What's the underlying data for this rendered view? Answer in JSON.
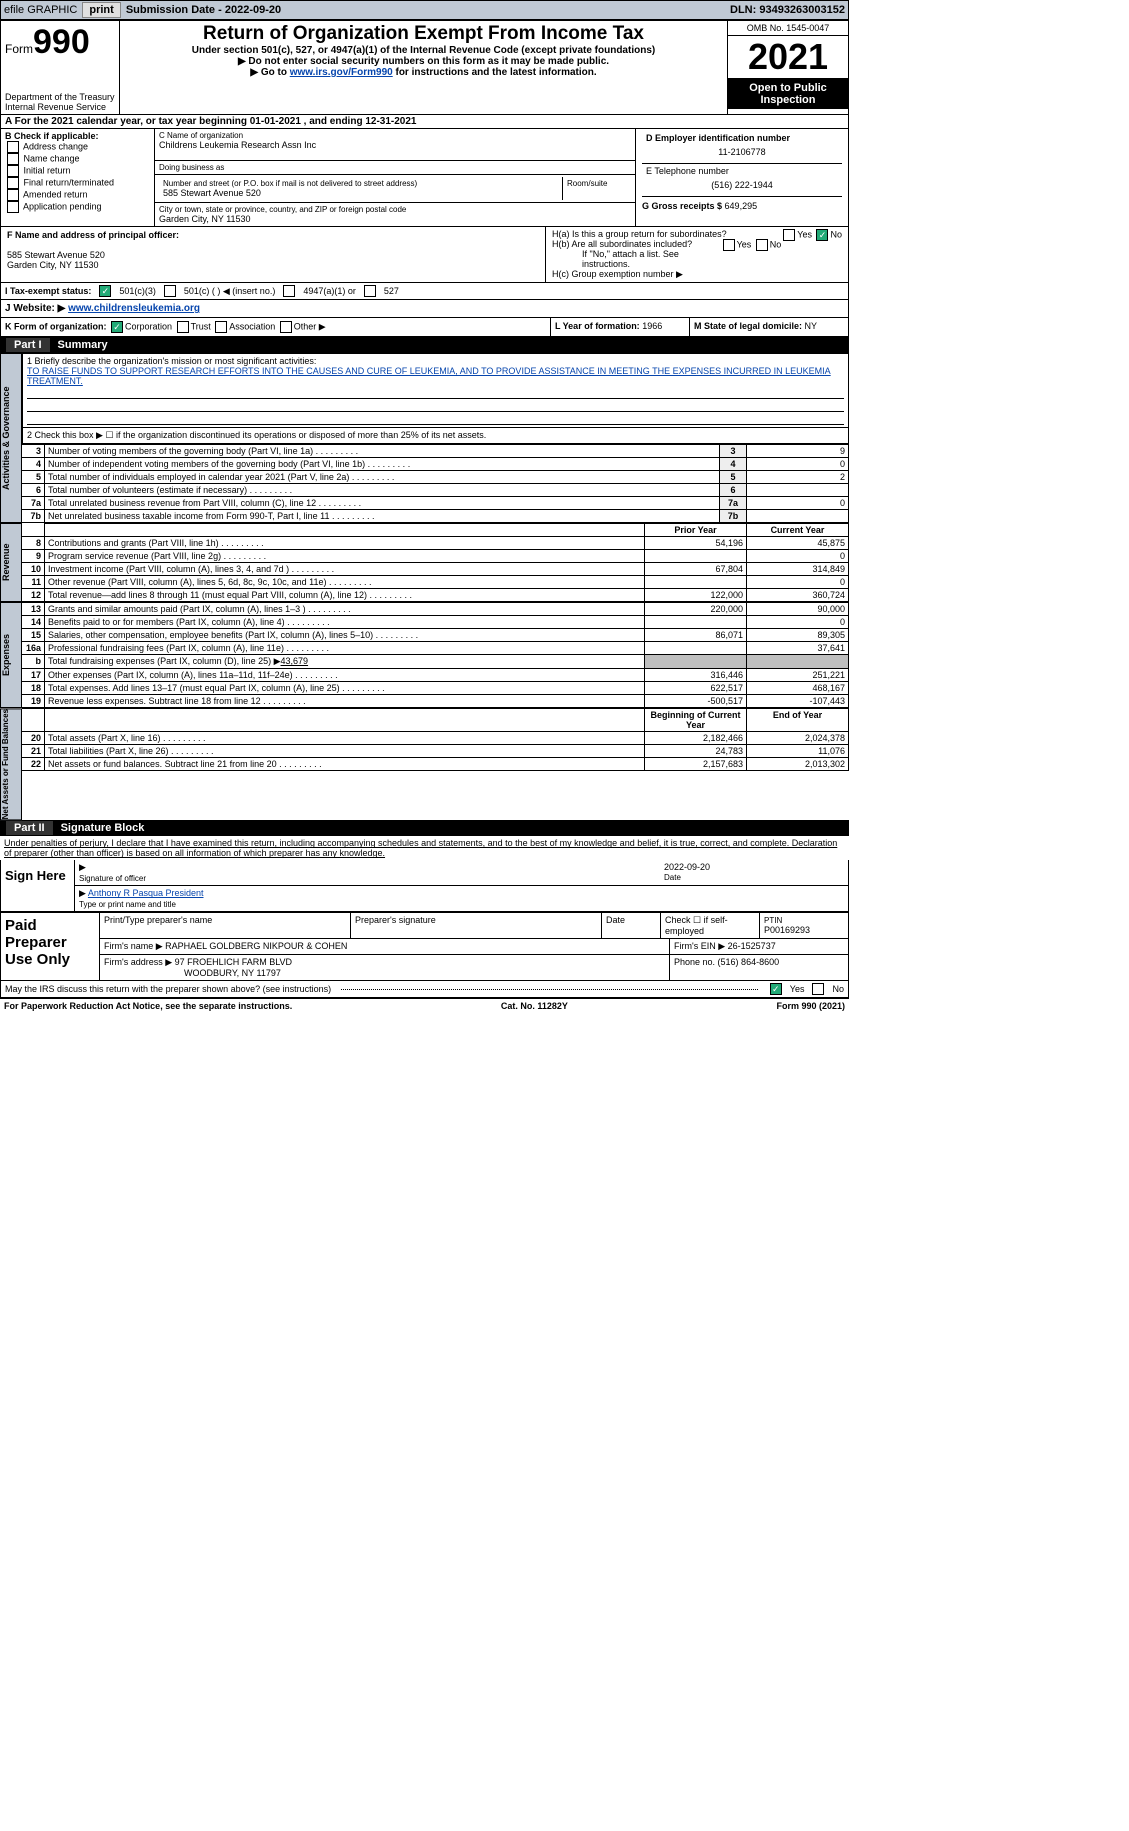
{
  "topbar": {
    "efile": "efile GRAPHIC",
    "print": "print",
    "sub_lbl": "Submission Date - ",
    "sub_date": "2022-09-20",
    "dln_lbl": "DLN: ",
    "dln": "93493263003152"
  },
  "hdr": {
    "form": "Form",
    "num": "990",
    "dept": "Department of the Treasury\nInternal Revenue Service",
    "title": "Return of Organization Exempt From Income Tax",
    "sub1": "Under section 501(c), 527, or 4947(a)(1) of the Internal Revenue Code (except private foundations)",
    "sub2": "▶ Do not enter social security numbers on this form as it may be made public.",
    "sub3a": "▶ Go to ",
    "sub3link": "www.irs.gov/Form990",
    "sub3b": " for instructions and the latest information.",
    "omb": "OMB No. 1545-0047",
    "year": "2021",
    "open": "Open to Public Inspection"
  },
  "A": {
    "txt": "A For the 2021 calendar year, or tax year beginning ",
    "d1": "01-01-2021",
    "mid": "   , and ending ",
    "d2": "12-31-2021"
  },
  "B": {
    "hdr": "B Check if applicable:",
    "items": [
      "Address change",
      "Name change",
      "Initial return",
      "Final return/terminated",
      "Amended return",
      "Application pending"
    ]
  },
  "C": {
    "lbl": "C Name of organization",
    "name": "Childrens Leukemia Research Assn Inc",
    "dba_lbl": "Doing business as",
    "dba": "",
    "addr_lbl": "Number and street (or P.O. box if mail is not delivered to street address)",
    "room_lbl": "Room/suite",
    "addr": "585 Stewart Avenue 520",
    "city_lbl": "City or town, state or province, country, and ZIP or foreign postal code",
    "city": "Garden City, NY  11530"
  },
  "D": {
    "lbl": "D Employer identification number",
    "ein": "11-2106778"
  },
  "E": {
    "lbl": "E Telephone number",
    "tel": "(516) 222-1944"
  },
  "G": {
    "lbl": "G Gross receipts $ ",
    "val": "649,295"
  },
  "F": {
    "lbl": "F  Name and address of principal officer:",
    "addr1": "585 Stewart Avenue 520",
    "addr2": "Garden City, NY  11530"
  },
  "H": {
    "a": "H(a)  Is this a group return for subordinates?",
    "b": "H(b)  Are all subordinates included?",
    "note": "If \"No,\" attach a list. See instructions.",
    "c": "H(c)  Group exemption number ▶",
    "yes": "Yes",
    "no": "No"
  },
  "I": {
    "lbl": "I    Tax-exempt status:",
    "o1": "501(c)(3)",
    "o2": "501(c) (   ) ◀ (insert no.)",
    "o3": "4947(a)(1) or",
    "o4": "527"
  },
  "J": {
    "lbl": "J    Website: ▶",
    "url": "www.childrensleukemia.org"
  },
  "K": {
    "lbl": "K Form of organization:",
    "o1": "Corporation",
    "o2": "Trust",
    "o3": "Association",
    "o4": "Other ▶"
  },
  "L": {
    "lbl": "L Year of formation: ",
    "val": "1966"
  },
  "M": {
    "lbl": "M State of legal domicile: ",
    "val": "NY"
  },
  "part1": {
    "num": "Part I",
    "title": "Summary"
  },
  "s1": {
    "lbl": "1   Briefly describe the organization's mission or most significant activities:",
    "txt": "TO RAISE FUNDS TO SUPPORT RESEARCH EFFORTS INTO THE CAUSES AND CURE OF LEUKEMIA, AND TO PROVIDE ASSISTANCE IN MEETING THE EXPENSES INCURRED IN LEUKEMIA TREATMENT."
  },
  "s2": "2   Check this box ▶ ☐  if the organization discontinued its operations or disposed of more than 25% of its net assets.",
  "side": {
    "ag": "Activities & Governance",
    "rev": "Revenue",
    "exp": "Expenses",
    "na": "Net Assets or\nFund Balances"
  },
  "lines": {
    "3": {
      "t": "Number of voting members of the governing body (Part VI, line 1a)",
      "v": "9"
    },
    "4": {
      "t": "Number of independent voting members of the governing body (Part VI, line 1b)",
      "v": "0"
    },
    "5": {
      "t": "Total number of individuals employed in calendar year 2021 (Part V, line 2a)",
      "v": "2"
    },
    "6": {
      "t": "Total number of volunteers (estimate if necessary)",
      "v": ""
    },
    "7a": {
      "t": "Total unrelated business revenue from Part VIII, column (C), line 12",
      "v": "0"
    },
    "7b": {
      "t": "Net unrelated business taxable income from Form 990-T, Part I, line 11",
      "v": ""
    }
  },
  "cols": {
    "py": "Prior Year",
    "cy": "Current Year",
    "boy": "Beginning of Current Year",
    "eoy": "End of Year"
  },
  "rev": {
    "8": {
      "t": "Contributions and grants (Part VIII, line 1h)",
      "p": "54,196",
      "c": "45,875"
    },
    "9": {
      "t": "Program service revenue (Part VIII, line 2g)",
      "p": "",
      "c": "0"
    },
    "10": {
      "t": "Investment income (Part VIII, column (A), lines 3, 4, and 7d )",
      "p": "67,804",
      "c": "314,849"
    },
    "11": {
      "t": "Other revenue (Part VIII, column (A), lines 5, 6d, 8c, 9c, 10c, and 11e)",
      "p": "",
      "c": "0"
    },
    "12": {
      "t": "Total revenue—add lines 8 through 11 (must equal Part VIII, column (A), line 12)",
      "p": "122,000",
      "c": "360,724"
    }
  },
  "exp": {
    "13": {
      "t": "Grants and similar amounts paid (Part IX, column (A), lines 1–3 )",
      "p": "220,000",
      "c": "90,000"
    },
    "14": {
      "t": "Benefits paid to or for members (Part IX, column (A), line 4)",
      "p": "",
      "c": "0"
    },
    "15": {
      "t": "Salaries, other compensation, employee benefits (Part IX, column (A), lines 5–10)",
      "p": "86,071",
      "c": "89,305"
    },
    "16a": {
      "t": "Professional fundraising fees (Part IX, column (A), line 11e)",
      "p": "",
      "c": "37,641"
    },
    "b": {
      "t": "Total fundraising expenses (Part IX, column (D), line 25) ▶",
      "v": "43,679"
    },
    "17": {
      "t": "Other expenses (Part IX, column (A), lines 11a–11d, 11f–24e)",
      "p": "316,446",
      "c": "251,221"
    },
    "18": {
      "t": "Total expenses. Add lines 13–17 (must equal Part IX, column (A), line 25)",
      "p": "622,517",
      "c": "468,167"
    },
    "19": {
      "t": "Revenue less expenses. Subtract line 18 from line 12",
      "p": "-500,517",
      "c": "-107,443"
    }
  },
  "na": {
    "20": {
      "t": "Total assets (Part X, line 16)",
      "p": "2,182,466",
      "c": "2,024,378"
    },
    "21": {
      "t": "Total liabilities (Part X, line 26)",
      "p": "24,783",
      "c": "11,076"
    },
    "22": {
      "t": "Net assets or fund balances. Subtract line 21 from line 20",
      "p": "2,157,683",
      "c": "2,013,302"
    }
  },
  "part2": {
    "num": "Part II",
    "title": "Signature Block"
  },
  "pen": "Under penalties of perjury, I declare that I have examined this return, including accompanying schedules and statements, and to the best of my knowledge and belief, it is true, correct, and complete. Declaration of preparer (other than officer) is based on all information of which preparer has any knowledge.",
  "sign": {
    "here": "Sign Here",
    "sig_lbl": "Signature of officer",
    "date_lbl": "Date",
    "date": "2022-09-20",
    "name": "Anthony R Pasqua  President",
    "name_lbl": "Type or print name and title"
  },
  "prep": {
    "title": "Paid Preparer Use Only",
    "h1": "Print/Type preparer's name",
    "h2": "Preparer's signature",
    "h3": "Date",
    "h4": "Check ☐ if self-employed",
    "h5": "PTIN",
    "ptin": "P00169293",
    "firm_lbl": "Firm's name    ▶",
    "firm": "RAPHAEL GOLDBERG NIKPOUR & COHEN",
    "ein_lbl": "Firm's EIN ▶",
    "ein": "26-1525737",
    "addr_lbl": "Firm's address ▶",
    "addr1": "97 FROEHLICH FARM BLVD",
    "addr2": "WOODBURY, NY  11797",
    "ph_lbl": "Phone no. ",
    "ph": "(516) 864-8600"
  },
  "irs_q": "May the IRS discuss this return with the preparer shown above? (see instructions)",
  "foot": {
    "l": "For Paperwork Reduction Act Notice, see the separate instructions.",
    "c": "Cat. No. 11282Y",
    "r": "Form 990 (2021)"
  }
}
